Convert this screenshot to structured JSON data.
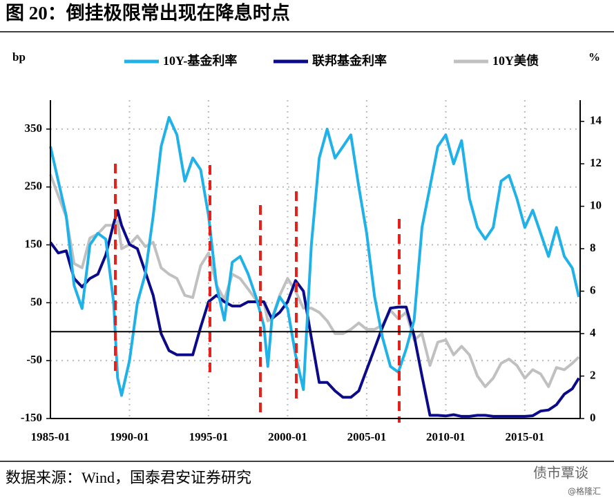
{
  "chart_data": {
    "type": "line",
    "title": "图 20：倒挂极限常出现在降息时点",
    "ylabel": "bp",
    "y2label": "%",
    "source": "数据来源：Wind，国泰君安证券研究",
    "watermark": "债市覃谈",
    "watermark2": "@格隆汇",
    "legend": "top",
    "grid": true,
    "x": [
      "1985-01",
      "1985-07",
      "1986-01",
      "1986-07",
      "1987-01",
      "1987-07",
      "1988-01",
      "1988-07",
      "1989-01",
      "1989-04",
      "1989-07",
      "1990-01",
      "1990-07",
      "1991-01",
      "1991-07",
      "1992-01",
      "1992-07",
      "1993-01",
      "1993-07",
      "1994-01",
      "1994-07",
      "1995-01",
      "1995-07",
      "1996-01",
      "1996-07",
      "1997-01",
      "1997-07",
      "1998-01",
      "1998-07",
      "1998-10",
      "1999-01",
      "1999-07",
      "2000-01",
      "2000-07",
      "2001-01",
      "2001-07",
      "2002-01",
      "2002-07",
      "2003-01",
      "2003-07",
      "2004-01",
      "2004-07",
      "2005-01",
      "2005-07",
      "2006-01",
      "2006-07",
      "2007-01",
      "2007-07",
      "2008-01",
      "2008-07",
      "2009-01",
      "2009-07",
      "2010-01",
      "2010-07",
      "2011-01",
      "2011-07",
      "2012-01",
      "2012-07",
      "2013-01",
      "2013-07",
      "2014-01",
      "2014-07",
      "2015-01",
      "2015-07",
      "2016-01",
      "2016-07",
      "2017-01",
      "2017-07",
      "2018-01",
      "2018-06"
    ],
    "xlim": [
      "1985-01",
      "2018-07"
    ],
    "xticks": [
      "1985-01",
      "1990-01",
      "1995-01",
      "2000-01",
      "2005-01",
      "2010-01",
      "2015-01"
    ],
    "ylim": [
      -150,
      400
    ],
    "yticks": [
      -150,
      -50,
      50,
      150,
      250,
      350
    ],
    "y2lim": [
      0,
      15
    ],
    "y2ticks": [
      0,
      2,
      4,
      6,
      8,
      10,
      12,
      14
    ],
    "series": [
      {
        "name": "10Y-基金利率",
        "color": "#1fb1e8",
        "axis": "y",
        "values": [
          320,
          260,
          200,
          80,
          40,
          150,
          170,
          160,
          50,
          -80,
          -110,
          -50,
          50,
          100,
          200,
          320,
          370,
          340,
          260,
          300,
          280,
          200,
          80,
          20,
          120,
          130,
          100,
          60,
          10,
          -60,
          20,
          60,
          40,
          -40,
          -100,
          150,
          300,
          350,
          300,
          320,
          340,
          250,
          170,
          60,
          -10,
          -60,
          -70,
          -30,
          20,
          180,
          250,
          320,
          340,
          290,
          330,
          230,
          180,
          160,
          180,
          260,
          270,
          230,
          180,
          210,
          170,
          130,
          180,
          130,
          110,
          60
        ]
      },
      {
        "name": "联邦基金利率",
        "color": "#0b0b8a",
        "axis": "y2",
        "values": [
          8.3,
          7.8,
          7.9,
          6.6,
          6.2,
          6.6,
          6.8,
          7.7,
          9.2,
          9.8,
          9.1,
          8.2,
          8.0,
          6.9,
          5.8,
          4.0,
          3.2,
          3.0,
          3.0,
          3.0,
          4.3,
          5.5,
          5.8,
          5.5,
          5.3,
          5.3,
          5.5,
          5.5,
          5.5,
          5.1,
          4.7,
          5.0,
          5.5,
          6.5,
          6.0,
          3.8,
          1.7,
          1.7,
          1.3,
          1.0,
          1.0,
          1.3,
          2.3,
          3.3,
          4.3,
          5.2,
          5.25,
          5.25,
          3.9,
          2.0,
          0.15,
          0.15,
          0.12,
          0.18,
          0.1,
          0.1,
          0.15,
          0.15,
          0.1,
          0.1,
          0.1,
          0.1,
          0.1,
          0.13,
          0.35,
          0.4,
          0.65,
          1.15,
          1.4,
          1.9
        ]
      },
      {
        "name": "10Y美债",
        "color": "#c0c0c0",
        "axis": "y2",
        "values": [
          11.5,
          10.5,
          9.5,
          7.3,
          7.1,
          8.5,
          8.7,
          9.1,
          9.1,
          9.3,
          8.0,
          8.2,
          8.6,
          8.1,
          8.3,
          7.1,
          6.8,
          6.6,
          5.8,
          5.7,
          7.2,
          7.8,
          6.3,
          5.6,
          6.8,
          6.6,
          6.1,
          5.6,
          5.5,
          4.6,
          4.7,
          5.8,
          6.6,
          6.0,
          5.2,
          5.2,
          5.0,
          4.6,
          4.0,
          4.0,
          4.2,
          4.5,
          4.2,
          4.2,
          4.4,
          5.1,
          4.7,
          5.0,
          3.7,
          4.0,
          2.5,
          3.6,
          3.7,
          3.0,
          3.4,
          3.0,
          2.0,
          1.5,
          1.9,
          2.6,
          2.8,
          2.5,
          1.9,
          2.3,
          2.1,
          1.5,
          2.4,
          2.3,
          2.6,
          2.9
        ]
      }
    ]
  }
}
